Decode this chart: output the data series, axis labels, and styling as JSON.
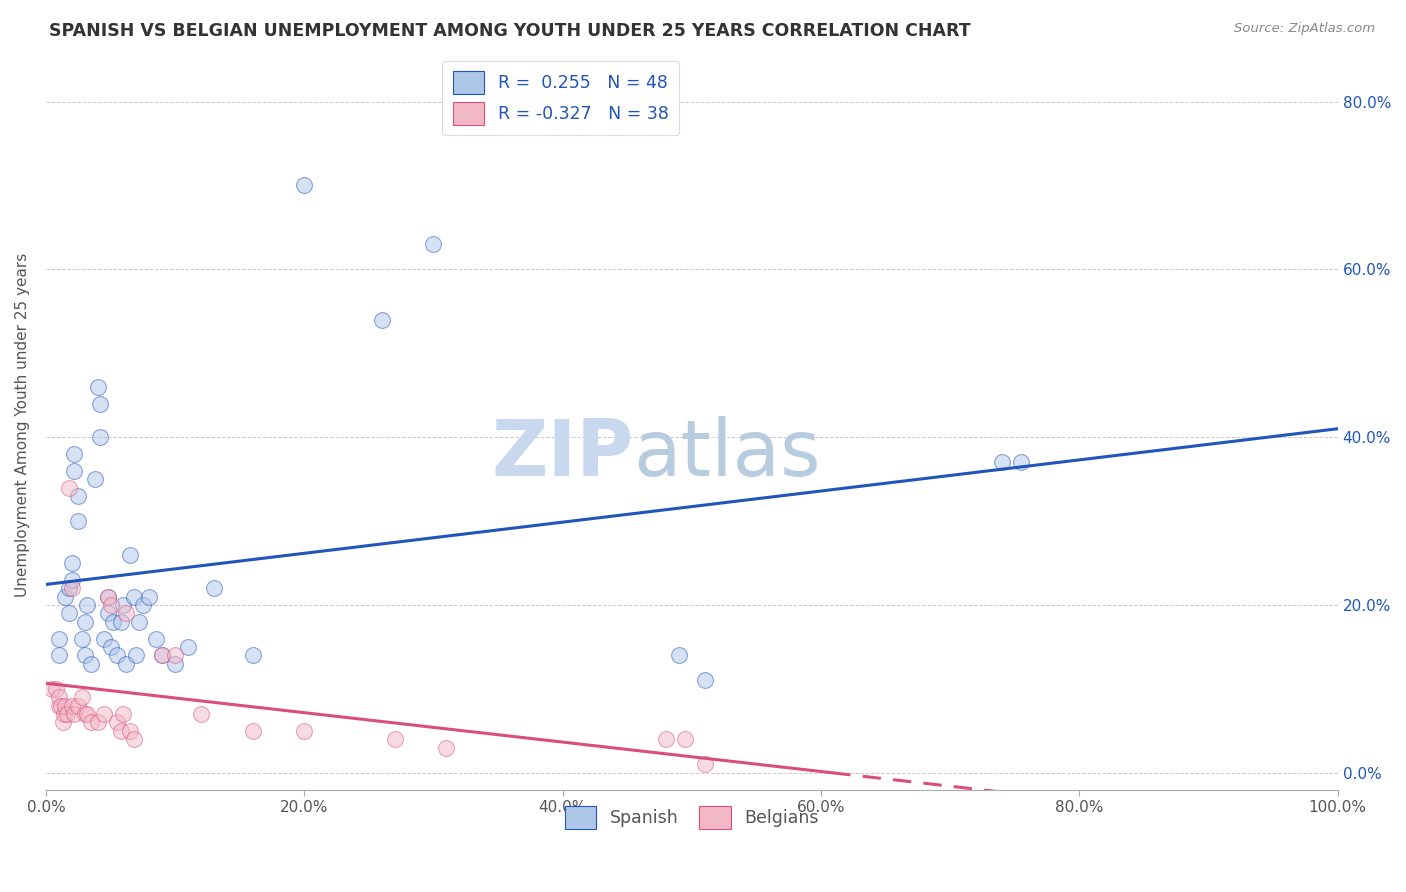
{
  "title": "SPANISH VS BELGIAN UNEMPLOYMENT AMONG YOUTH UNDER 25 YEARS CORRELATION CHART",
  "source": "Source: ZipAtlas.com",
  "ylabel": "Unemployment Among Youth under 25 years",
  "xlim": [
    0,
    1.0
  ],
  "ylim": [
    -0.02,
    0.85
  ],
  "xticks": [
    0.0,
    0.2,
    0.4,
    0.6,
    0.8,
    1.0
  ],
  "yticks": [
    0.0,
    0.2,
    0.4,
    0.6,
    0.8
  ],
  "xtick_labels": [
    "0.0%",
    "20.0%",
    "40.0%",
    "60.0%",
    "80.0%",
    "100.0%"
  ],
  "ytick_labels_right": [
    "0.0%",
    "20.0%",
    "40.0%",
    "60.0%",
    "80.0%"
  ],
  "background_color": "#ffffff",
  "grid_color": "#cccccc",
  "spanish_color": "#aec6e8",
  "belgian_color": "#f2b8c6",
  "spanish_line_color": "#2255bb",
  "belgian_line_color": "#d94f7a",
  "legend_line1": "R =  0.255   N = 48",
  "legend_line2": "R = -0.327   N = 38",
  "spanish_x": [
    0.01,
    0.01,
    0.015,
    0.018,
    0.018,
    0.02,
    0.02,
    0.022,
    0.022,
    0.025,
    0.025,
    0.028,
    0.03,
    0.03,
    0.032,
    0.035,
    0.038,
    0.04,
    0.042,
    0.042,
    0.045,
    0.048,
    0.048,
    0.05,
    0.052,
    0.055,
    0.058,
    0.06,
    0.062,
    0.065,
    0.068,
    0.07,
    0.072,
    0.075,
    0.08,
    0.085,
    0.09,
    0.1,
    0.11,
    0.13,
    0.16,
    0.2,
    0.26,
    0.3,
    0.49,
    0.51,
    0.74,
    0.755
  ],
  "spanish_y": [
    0.14,
    0.16,
    0.21,
    0.22,
    0.19,
    0.25,
    0.23,
    0.36,
    0.38,
    0.33,
    0.3,
    0.16,
    0.14,
    0.18,
    0.2,
    0.13,
    0.35,
    0.46,
    0.44,
    0.4,
    0.16,
    0.21,
    0.19,
    0.15,
    0.18,
    0.14,
    0.18,
    0.2,
    0.13,
    0.26,
    0.21,
    0.14,
    0.18,
    0.2,
    0.21,
    0.16,
    0.14,
    0.13,
    0.15,
    0.22,
    0.14,
    0.7,
    0.54,
    0.63,
    0.14,
    0.11,
    0.37,
    0.37
  ],
  "belgian_x": [
    0.005,
    0.008,
    0.01,
    0.01,
    0.012,
    0.013,
    0.014,
    0.015,
    0.016,
    0.018,
    0.02,
    0.02,
    0.022,
    0.025,
    0.028,
    0.03,
    0.032,
    0.035,
    0.04,
    0.045,
    0.048,
    0.05,
    0.055,
    0.058,
    0.06,
    0.062,
    0.065,
    0.068,
    0.09,
    0.1,
    0.12,
    0.16,
    0.2,
    0.27,
    0.31,
    0.48,
    0.495,
    0.51
  ],
  "belgian_y": [
    0.1,
    0.1,
    0.08,
    0.09,
    0.08,
    0.06,
    0.07,
    0.08,
    0.07,
    0.34,
    0.08,
    0.22,
    0.07,
    0.08,
    0.09,
    0.07,
    0.07,
    0.06,
    0.06,
    0.07,
    0.21,
    0.2,
    0.06,
    0.05,
    0.07,
    0.19,
    0.05,
    0.04,
    0.14,
    0.14,
    0.07,
    0.05,
    0.05,
    0.04,
    0.03,
    0.04,
    0.04,
    0.01
  ],
  "watermark_zip": "ZIP",
  "watermark_atlas": "atlas",
  "watermark_color_zip": "#c8d8ee",
  "watermark_color_atlas": "#b8cce0",
  "marker_size": 130,
  "marker_alpha": 0.5,
  "line_width": 2.2
}
